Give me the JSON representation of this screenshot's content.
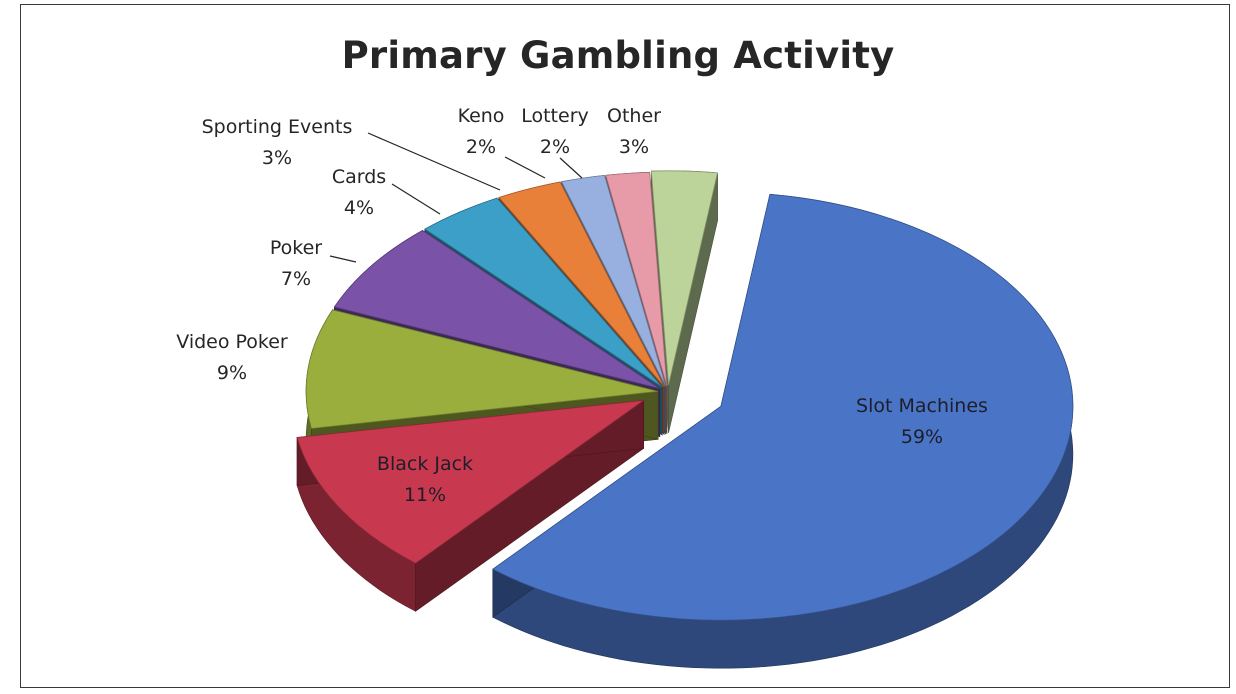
{
  "chart_data": {
    "type": "pie",
    "title": "Primary Gambling Activity",
    "three_d": true,
    "exploded": true,
    "slices": [
      {
        "label": "Slot Machines",
        "value": 59,
        "value_label": "59%",
        "color": "#4a74c6",
        "label_position": "inside"
      },
      {
        "label": "Black Jack",
        "value": 11,
        "value_label": "11%",
        "color": "#c8394f",
        "label_position": "inside"
      },
      {
        "label": "Video Poker",
        "value": 9,
        "value_label": "9%",
        "color": "#9aae3e",
        "label_position": "outside"
      },
      {
        "label": "Poker",
        "value": 7,
        "value_label": "7%",
        "color": "#7a52a8",
        "label_position": "outside"
      },
      {
        "label": "Cards",
        "value": 4,
        "value_label": "4%",
        "color": "#3b9fc8",
        "label_position": "outside"
      },
      {
        "label": "Sporting Events",
        "value": 3,
        "value_label": "3%",
        "color": "#e8803a",
        "label_position": "outside"
      },
      {
        "label": "Keno",
        "value": 2,
        "value_label": "2%",
        "color": "#98b0e0",
        "label_position": "outside"
      },
      {
        "label": "Lottery",
        "value": 2,
        "value_label": "2%",
        "color": "#e79aa8",
        "label_position": "outside"
      },
      {
        "label": "Other",
        "value": 3,
        "value_label": "3%",
        "color": "#bcd49a",
        "label_position": "outside"
      }
    ],
    "legend": "none"
  }
}
